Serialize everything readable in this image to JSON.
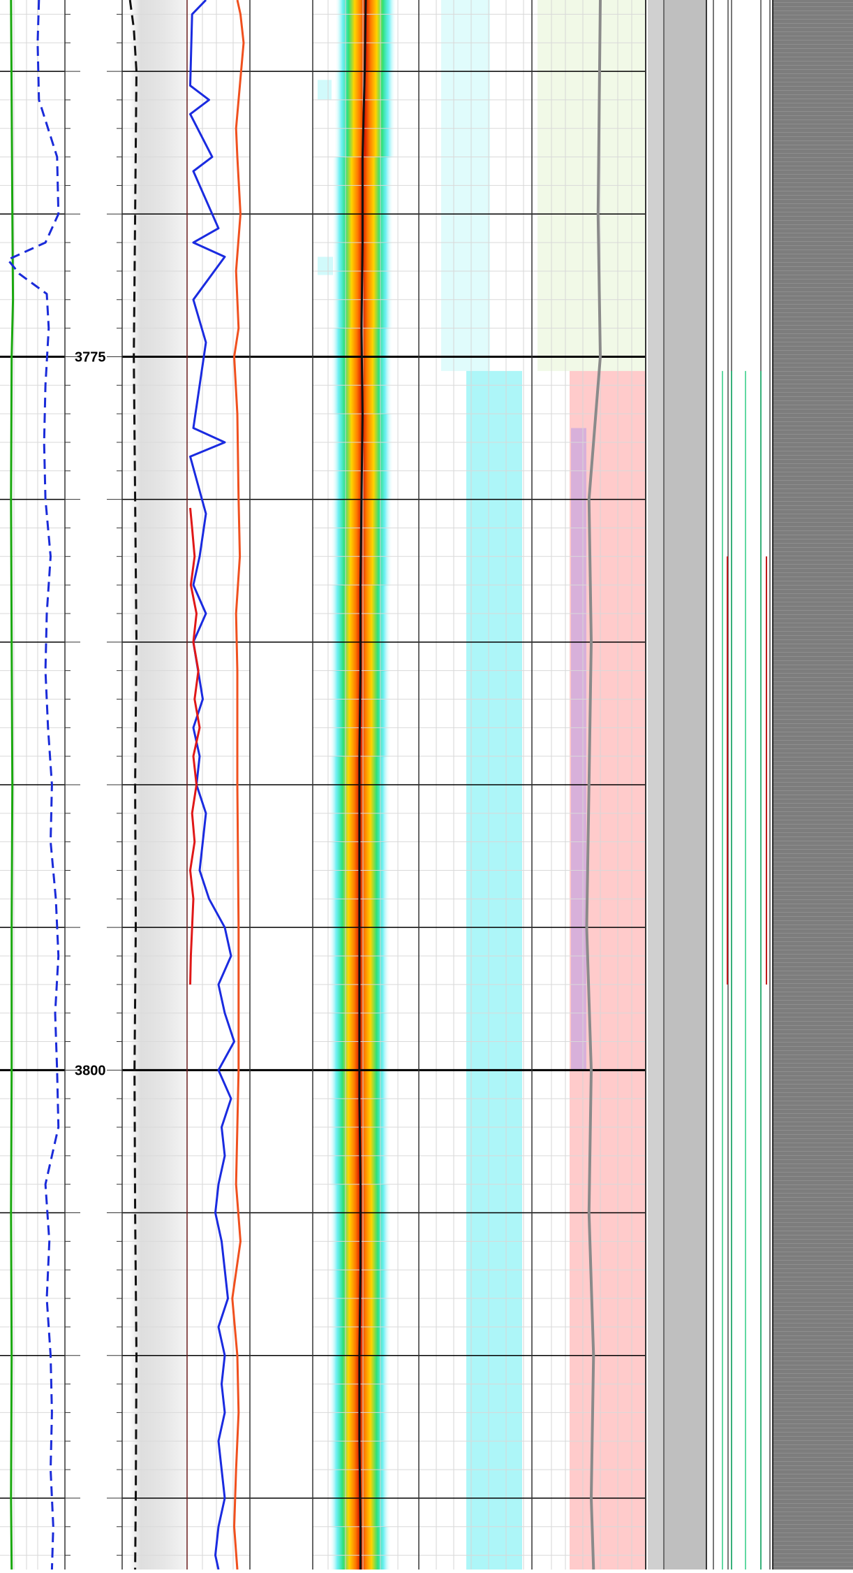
{
  "colors": {
    "gr_curve": "#1aa80f",
    "resistivity_dashed": "#1a2bd9",
    "caliper_dashed": "#111111",
    "spike_curve": "#1a2be0",
    "orange_curve": "#f0501e",
    "red_curve": "#e01818",
    "semblance_hot": "#d81a00",
    "semblance_mid": "#ffd400",
    "cyan_band": "#00e4ea",
    "gray_curve": "#8a8a8a",
    "facies_pink": "#ff8c8c",
    "facies_purple": "#b89ae8",
    "image_gray": "#bfbfbf",
    "image_dark": "#7d7d7d"
  },
  "chart_data": {
    "type": "line",
    "title": "",
    "depth_axis": {
      "range": [
        3762.5,
        3817.5
      ],
      "major_step": 5,
      "labeled_every": 25,
      "tick_labels": [
        "3775",
        "3800"
      ]
    },
    "tracks": [
      {
        "id": "track-1",
        "curves": [
          {
            "style": "solid",
            "color": "gr_curve",
            "depth": [
              3762.5,
              3766,
              3770,
              3773,
              3775,
              3780,
              3785,
              3790,
              3795,
              3800,
              3805,
              3810,
              3815,
              3817.5
            ],
            "value": [
              0.17,
              0.18,
              0.19,
              0.2,
              0.18,
              0.17,
              0.18,
              0.19,
              0.18,
              0.18,
              0.17,
              0.18,
              0.17,
              0.18
            ]
          },
          {
            "style": "dashed",
            "color": "resistivity_dashed",
            "depth": [
              3762.5,
              3764,
              3766,
              3768,
              3770,
              3771,
              3771.6,
              3772.1,
              3772.8,
              3774,
              3776,
              3778,
              3780,
              3782,
              3784,
              3786,
              3788,
              3790,
              3792,
              3794,
              3796,
              3798,
              3800,
              3802,
              3804,
              3806,
              3808,
              3810,
              3812,
              3814,
              3816,
              3817.5
            ],
            "value": [
              0.6,
              0.58,
              0.6,
              0.88,
              0.9,
              0.7,
              0.12,
              0.3,
              0.72,
              0.75,
              0.7,
              0.68,
              0.7,
              0.78,
              0.72,
              0.7,
              0.74,
              0.8,
              0.78,
              0.86,
              0.9,
              0.85,
              0.88,
              0.9,
              0.7,
              0.76,
              0.72,
              0.78,
              0.8,
              0.78,
              0.82,
              0.8
            ]
          }
        ]
      },
      {
        "id": "track-2",
        "curves": [
          {
            "style": "dashed",
            "color": "caliper_dashed",
            "depth": [
              3762.5,
              3763.5,
              3765,
              3770,
              3775,
              3780,
              3785,
              3790,
              3795,
              3800,
              3805,
              3810,
              3815,
              3817.5
            ],
            "value": [
              0.12,
              0.18,
              0.22,
              0.2,
              0.18,
              0.2,
              0.22,
              0.2,
              0.21,
              0.19,
              0.2,
              0.22,
              0.21,
              0.2
            ]
          }
        ]
      },
      {
        "id": "track-3",
        "curves": [
          {
            "style": "spiky",
            "color": "spike_curve",
            "depth": [
              3762.5,
              3763,
              3765.5,
              3766,
              3766.5,
              3768,
              3768.5,
              3770.5,
              3771,
              3771.5,
              3773,
              3774.5,
              3776,
              3777.5,
              3778,
              3778.5,
              3780.5,
              3782,
              3783,
              3784,
              3785,
              3787,
              3788,
              3789,
              3790,
              3791,
              3793,
              3794,
              3795,
              3796,
              3797,
              3798,
              3799,
              3800,
              3801,
              3802,
              3803,
              3804,
              3805,
              3806,
              3807,
              3808,
              3809,
              3810,
              3811,
              3812,
              3813,
              3814,
              3815,
              3816,
              3817,
              3817.5
            ],
            "value": [
              0.3,
              0.08,
              0.05,
              0.35,
              0.05,
              0.4,
              0.1,
              0.5,
              0.1,
              0.6,
              0.1,
              0.3,
              0.2,
              0.1,
              0.6,
              0.05,
              0.3,
              0.2,
              0.1,
              0.3,
              0.1,
              0.25,
              0.1,
              0.2,
              0.15,
              0.3,
              0.2,
              0.35,
              0.6,
              0.7,
              0.5,
              0.6,
              0.75,
              0.5,
              0.7,
              0.55,
              0.6,
              0.5,
              0.45,
              0.55,
              0.6,
              0.65,
              0.5,
              0.6,
              0.55,
              0.6,
              0.5,
              0.55,
              0.6,
              0.5,
              0.45,
              0.5
            ]
          },
          {
            "style": "solid",
            "color": "orange_curve",
            "depth": [
              3762.5,
              3763,
              3764,
              3766,
              3767,
              3768,
              3770,
              3772,
              3774,
              3775,
              3777,
              3780,
              3782,
              3784,
              3786,
              3790,
              3795,
              3800,
              3802,
              3804,
              3806,
              3808,
              3810,
              3812,
              3814,
              3816,
              3817.5
            ],
            "value": [
              0.8,
              0.85,
              0.9,
              0.82,
              0.78,
              0.8,
              0.85,
              0.78,
              0.82,
              0.75,
              0.8,
              0.82,
              0.84,
              0.78,
              0.8,
              0.8,
              0.82,
              0.82,
              0.8,
              0.78,
              0.85,
              0.72,
              0.8,
              0.82,
              0.78,
              0.75,
              0.8
            ]
          },
          {
            "style": "solid",
            "color": "red_curve",
            "depth": [
              3780.3,
              3781,
              3782,
              3783,
              3784,
              3785,
              3786,
              3787,
              3788,
              3789,
              3790,
              3791,
              3792,
              3793,
              3794,
              3795,
              3796,
              3797
            ],
            "value": [
              0.05,
              0.08,
              0.12,
              0.06,
              0.15,
              0.1,
              0.18,
              0.12,
              0.2,
              0.1,
              0.15,
              0.08,
              0.12,
              0.05,
              0.1,
              0.08,
              0.06,
              0.05
            ]
          }
        ]
      },
      {
        "id": "track-4",
        "curves": [
          {
            "style": "semblance",
            "color": "semblance_hot",
            "depth": [
              3762.5,
              3765,
              3768,
              3771,
              3774,
              3777,
              3780,
              3783,
              3786,
              3789,
              3792,
              3795,
              3798,
              3801,
              3804,
              3807,
              3810,
              3813,
              3816,
              3817.5
            ],
            "value": [
              0.5,
              0.49,
              0.47,
              0.47,
              0.46,
              0.47,
              0.46,
              0.45,
              0.45,
              0.44,
              0.44,
              0.44,
              0.44,
              0.44,
              0.45,
              0.45,
              0.44,
              0.44,
              0.45,
              0.45
            ]
          }
        ]
      },
      {
        "id": "track-5",
        "curves": [
          {
            "style": "solid",
            "color": "gray_curve",
            "depth": [
              3762.5,
              3770,
              3775,
              3778,
              3780,
              3785,
              3790,
              3795,
              3800,
              3805,
              3810,
              3815,
              3817.5
            ],
            "value": [
              0.8,
              0.79,
              0.8,
              0.77,
              0.75,
              0.76,
              0.75,
              0.74,
              0.76,
              0.75,
              0.77,
              0.76,
              0.77
            ]
          }
        ]
      }
    ],
    "grid": true,
    "legend": "none"
  }
}
